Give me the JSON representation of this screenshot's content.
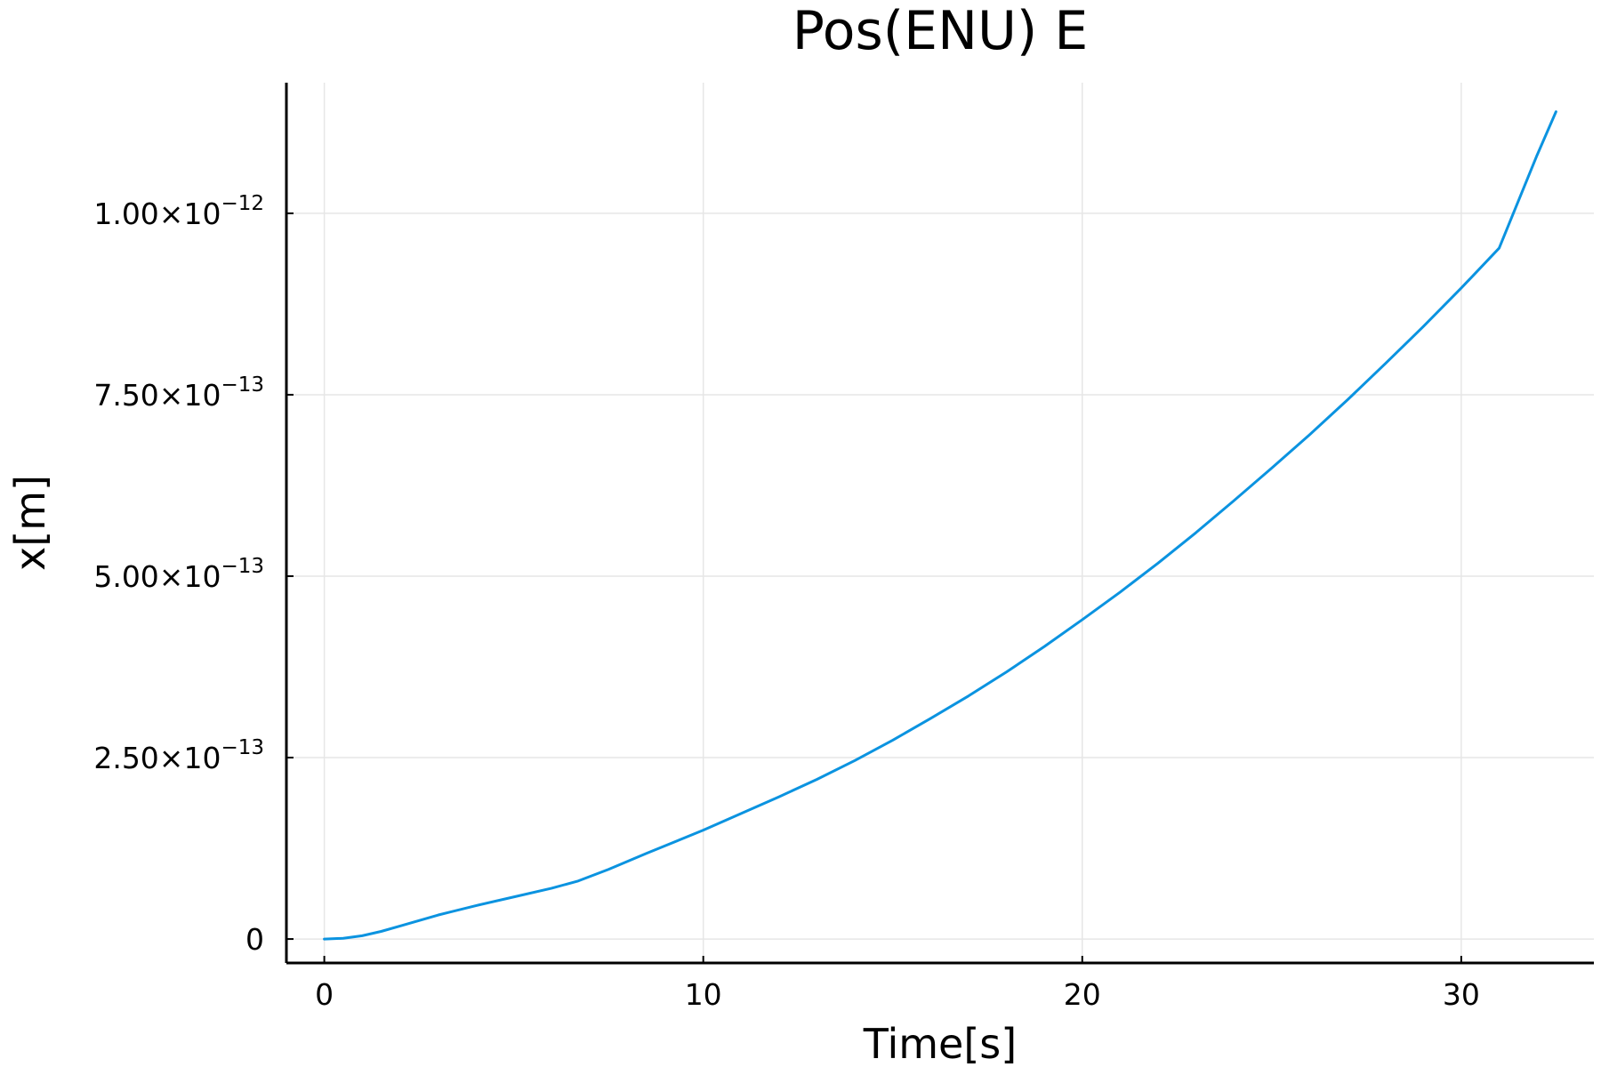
{
  "chart_data": {
    "type": "line",
    "title": "Pos(ENU) E",
    "xlabel": "Time[s]",
    "ylabel": "x[m]",
    "xlim": [
      -1,
      33.5
    ],
    "ylim": [
      -3.3e-14,
      1.18e-12
    ],
    "grid": true,
    "legend": "none",
    "x_ticks": [
      {
        "value": 0,
        "label": "0"
      },
      {
        "value": 10,
        "label": "10"
      },
      {
        "value": 20,
        "label": "20"
      },
      {
        "value": 30,
        "label": "30"
      }
    ],
    "y_ticks": [
      {
        "value": 0,
        "mantissa": "0",
        "exponent": ""
      },
      {
        "value": 2.5e-13,
        "mantissa": "2.50×10",
        "exponent": "−13"
      },
      {
        "value": 5e-13,
        "mantissa": "5.00×10",
        "exponent": "−13"
      },
      {
        "value": 7.5e-13,
        "mantissa": "7.50×10",
        "exponent": "−13"
      },
      {
        "value": 1e-12,
        "mantissa": "1.00×10",
        "exponent": "−12"
      }
    ],
    "series": [
      {
        "color": "#0b93e0",
        "x": [
          0,
          0.5,
          1,
          1.5,
          2,
          3,
          4,
          5,
          6,
          6.7,
          7.5,
          8.5,
          10,
          11,
          12,
          13,
          14,
          15,
          16,
          17,
          18,
          19,
          20,
          21,
          22,
          23,
          24,
          25,
          26,
          27,
          28,
          29,
          30,
          31,
          32,
          32.5
        ],
        "y": [
          0,
          1e-15,
          4.5e-15,
          1.05e-14,
          1.8e-14,
          3.3e-14,
          4.6e-14,
          5.8e-14,
          7e-14,
          8e-14,
          9.6e-14,
          1.18e-13,
          1.5e-13,
          1.73e-13,
          1.96e-13,
          2.2e-13,
          2.46e-13,
          2.74e-13,
          3.04e-13,
          3.35e-13,
          3.68e-13,
          4.03e-13,
          4.4e-13,
          4.78e-13,
          5.18e-13,
          5.6e-13,
          6.04e-13,
          6.49e-13,
          6.95e-13,
          7.43e-13,
          7.93e-13,
          8.44e-13,
          8.97e-13,
          9.52e-13,
          1.08e-12,
          1.14e-12
        ]
      }
    ]
  }
}
